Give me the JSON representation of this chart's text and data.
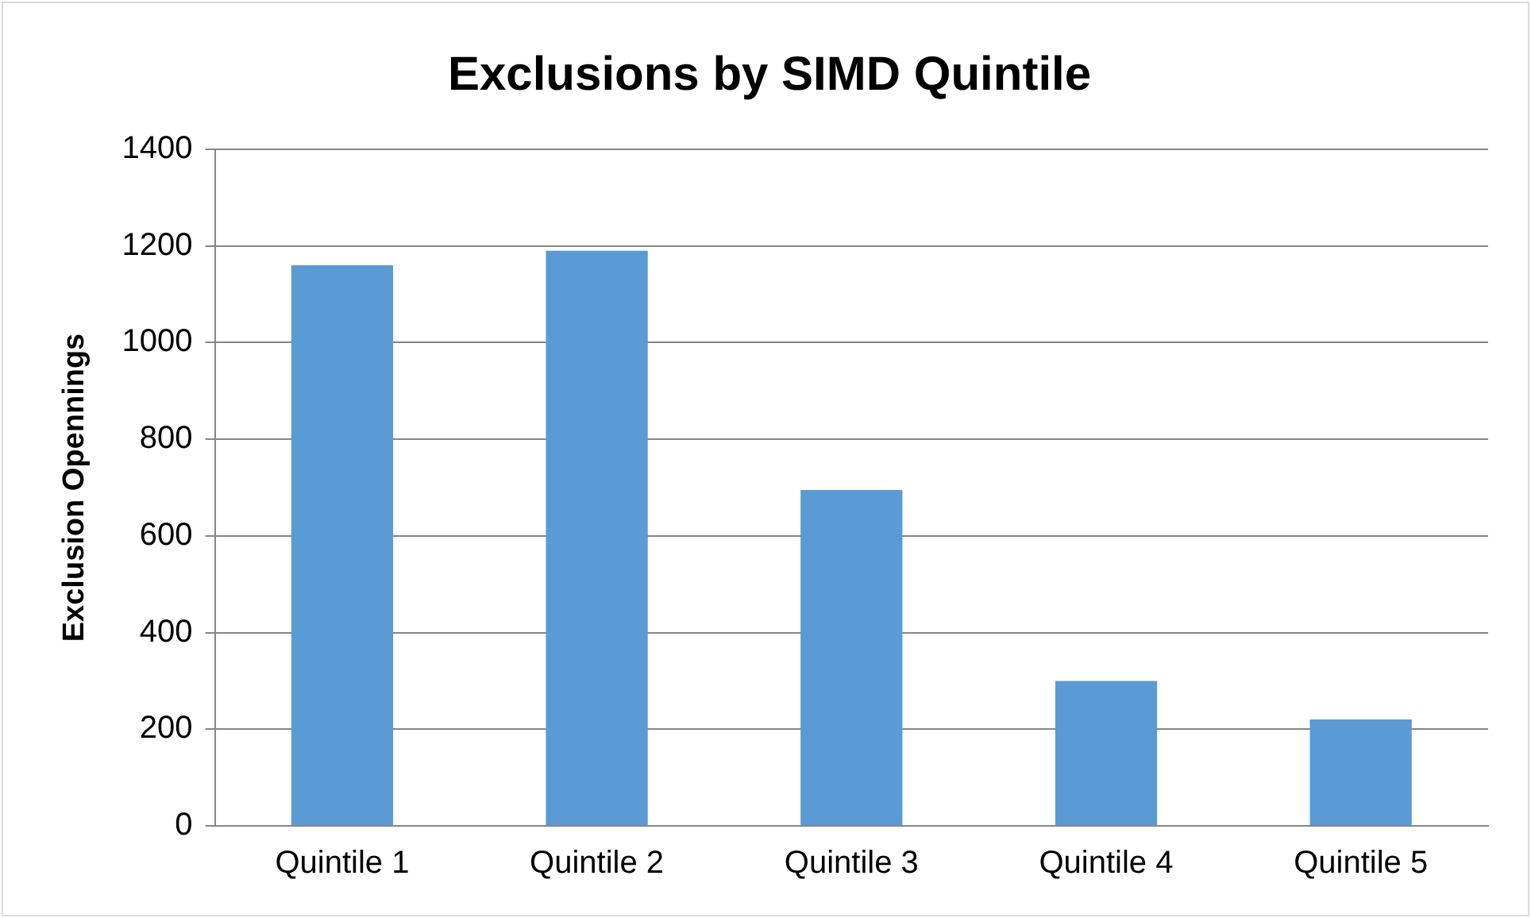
{
  "chart_data": {
    "type": "bar",
    "title": "Exclusions by SIMD Quintile",
    "ylabel": "Exclusion Opennings",
    "categories": [
      "Quintile 1",
      "Quintile 2",
      "Quintile 3",
      "Quintile 4",
      "Quintile 5"
    ],
    "values": [
      1160,
      1190,
      695,
      300,
      220
    ],
    "color": "#5b9bd5",
    "ylim": [
      0,
      1400
    ],
    "yticks": [
      0,
      200,
      400,
      600,
      800,
      1000,
      1200,
      1400
    ],
    "grid": "y",
    "legend": false
  }
}
